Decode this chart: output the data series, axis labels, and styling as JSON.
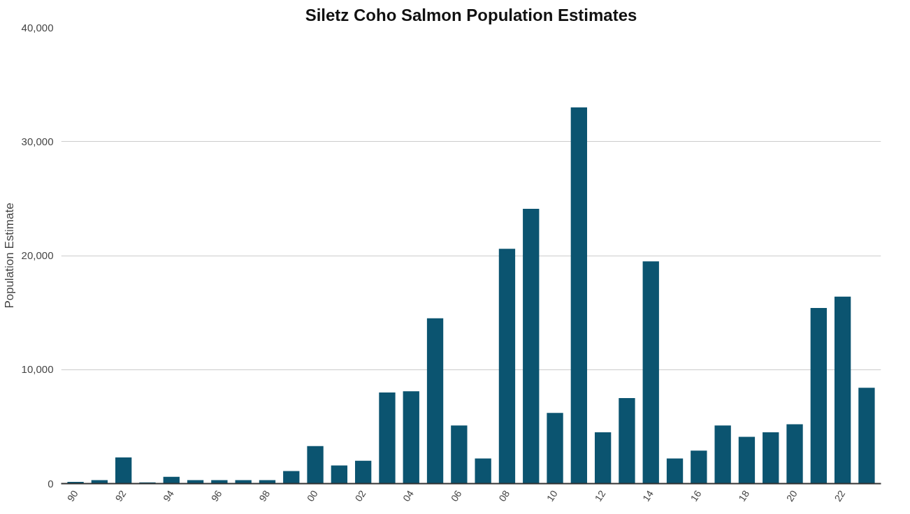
{
  "chart_data": {
    "type": "bar",
    "title": "Siletz Coho Salmon Population Estimates",
    "ylabel": "Population Estimate",
    "categories": [
      "90",
      null,
      "92",
      null,
      "94",
      null,
      "96",
      null,
      "98",
      null,
      "00",
      null,
      "02",
      null,
      "04",
      null,
      "06",
      null,
      "08",
      null,
      "10",
      null,
      "12",
      null,
      "14",
      null,
      "16",
      null,
      "18",
      null,
      "20",
      null,
      "22",
      null
    ],
    "values": [
      150,
      300,
      2300,
      100,
      600,
      300,
      300,
      300,
      300,
      1100,
      3300,
      1600,
      2000,
      8000,
      8100,
      14500,
      5100,
      2200,
      20600,
      24100,
      6200,
      33000,
      4500,
      7500,
      19500,
      2200,
      2900,
      5100,
      4100,
      4500,
      5200,
      15400,
      16400,
      8400
    ],
    "color": "#0b5470",
    "ylim": [
      0,
      40000
    ],
    "yticks": [
      {
        "value": 0,
        "label": "0"
      },
      {
        "value": 10000,
        "label": "10,000"
      },
      {
        "value": 20000,
        "label": "20,000"
      },
      {
        "value": 30000,
        "label": "30,000"
      },
      {
        "value": 40000,
        "label": "40,000"
      }
    ],
    "grid": "y"
  }
}
